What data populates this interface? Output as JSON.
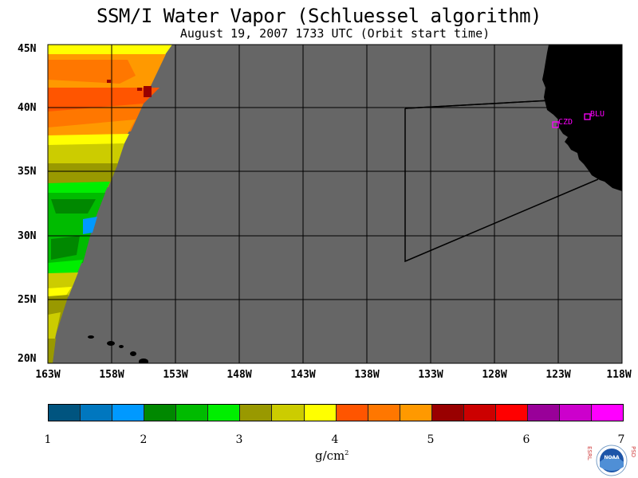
{
  "title": "SSM/I Water Vapor (Schluessel algorithm)",
  "subtitle": "August 19, 2007  1733 UTC  (Orbit start time)",
  "map": {
    "lat_labels": [
      "45N",
      "40N",
      "35N",
      "30N",
      "25N",
      "20N"
    ],
    "lon_labels": [
      "163W",
      "158W",
      "153W",
      "148W",
      "143W",
      "138W",
      "133W",
      "128W",
      "123W",
      "118W"
    ],
    "stations": [
      {
        "id": "CZD",
        "label": "CZD"
      },
      {
        "id": "BLU",
        "label": "BLU"
      }
    ],
    "colors": {
      "ocean_nodata": "#666666",
      "land": "#000000",
      "station": "#ff00ff"
    }
  },
  "colorbar": {
    "tick_labels": [
      "1",
      "2",
      "3",
      "4",
      "5",
      "6",
      "7"
    ],
    "colors": [
      "#00547f",
      "#0077bf",
      "#0099ff",
      "#008800",
      "#00bb00",
      "#00ee00",
      "#999900",
      "#cccc00",
      "#ffff00",
      "#ff5500",
      "#ff7700",
      "#ff9900",
      "#990000",
      "#cc0000",
      "#ff0000",
      "#990099",
      "#cc00cc",
      "#ff00ff"
    ],
    "unit": "g/cm",
    "unit_exp": "2"
  },
  "logo": {
    "letters_left": "ESRL",
    "letters_right": "PSD",
    "text": "NOAA"
  }
}
